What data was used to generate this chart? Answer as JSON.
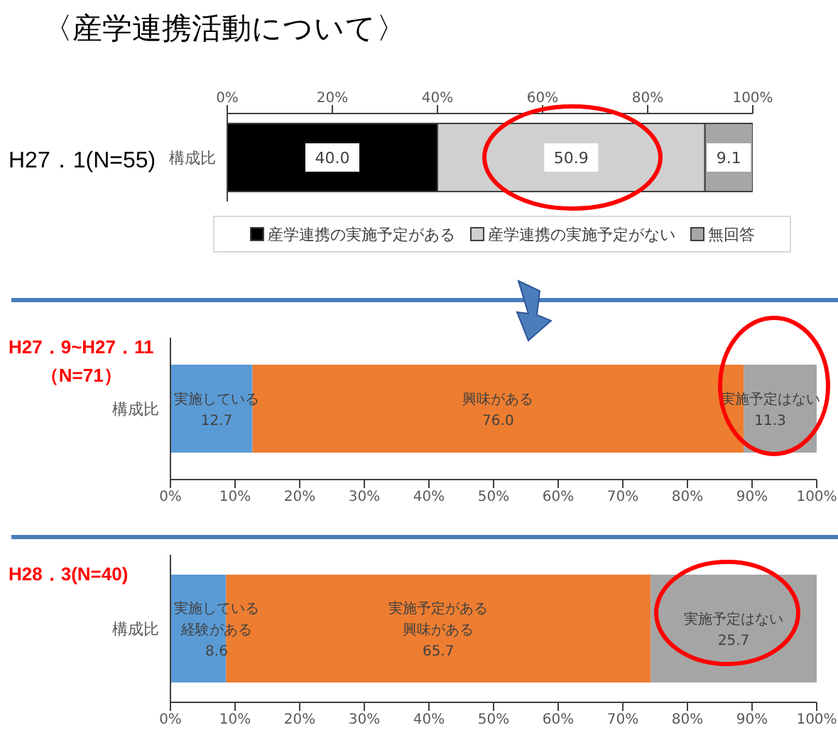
{
  "chart_data": [
    {
      "type": "bar",
      "orientation": "horizontal",
      "stacked": true,
      "title": "〈産学連携活動について〉",
      "ylabel": "H27．1(N=55)",
      "categories": [
        "構成比"
      ],
      "legend": "bottom",
      "x2lim": [
        0,
        100
      ],
      "x2ticks": [
        {
          "value": 0,
          "label": "0%"
        },
        {
          "value": 20,
          "label": "20%"
        },
        {
          "value": 40,
          "label": "40%"
        },
        {
          "value": 60,
          "label": "60%"
        },
        {
          "value": 80,
          "label": "80%"
        },
        {
          "value": 100,
          "label": "100%"
        }
      ],
      "series": [
        {
          "name": "産学連携の実施予定がある",
          "color": "#000000",
          "values": [
            40.0
          ],
          "value_labels": [
            "40.0"
          ]
        },
        {
          "name": "産学連携の実施予定がない",
          "color": "#d0d0d0",
          "values": [
            50.9
          ],
          "value_labels": [
            "50.9"
          ]
        },
        {
          "name": "無回答",
          "color": "#a6a6a6",
          "values": [
            9.1
          ],
          "value_labels": [
            "9.1"
          ]
        }
      ]
    },
    {
      "type": "bar",
      "orientation": "horizontal",
      "stacked": true,
      "ylabel": "H27．9~H27．11（N=71）",
      "categories": [
        "構成比"
      ],
      "xlim": [
        0,
        100
      ],
      "xticks": [
        {
          "value": 0,
          "label": "0%"
        },
        {
          "value": 10,
          "label": "10%"
        },
        {
          "value": 20,
          "label": "20%"
        },
        {
          "value": 30,
          "label": "30%"
        },
        {
          "value": 40,
          "label": "40%"
        },
        {
          "value": 50,
          "label": "50%"
        },
        {
          "value": 60,
          "label": "60%"
        },
        {
          "value": 70,
          "label": "70%"
        },
        {
          "value": 80,
          "label": "80%"
        },
        {
          "value": 90,
          "label": "90%"
        },
        {
          "value": 100,
          "label": "100%"
        }
      ],
      "series": [
        {
          "name": "実施している",
          "color": "#5b9bd5",
          "values": [
            12.7
          ],
          "value_labels": [
            "12.7"
          ]
        },
        {
          "name": "興味がある",
          "color": "#ed7d31",
          "values": [
            76.0
          ],
          "value_labels": [
            "76.0"
          ]
        },
        {
          "name": "実施予定はない",
          "color": "#a5a5a5",
          "values": [
            11.3
          ],
          "value_labels": [
            "11.3"
          ]
        }
      ]
    },
    {
      "type": "bar",
      "orientation": "horizontal",
      "stacked": true,
      "ylabel": "H28．3(N=40)",
      "categories": [
        "構成比"
      ],
      "xlim": [
        0,
        100
      ],
      "xticks": [
        {
          "value": 0,
          "label": "0%"
        },
        {
          "value": 10,
          "label": "10%"
        },
        {
          "value": 20,
          "label": "20%"
        },
        {
          "value": 30,
          "label": "30%"
        },
        {
          "value": 40,
          "label": "40%"
        },
        {
          "value": 50,
          "label": "50%"
        },
        {
          "value": 60,
          "label": "60%"
        },
        {
          "value": 70,
          "label": "70%"
        },
        {
          "value": 80,
          "label": "80%"
        },
        {
          "value": 90,
          "label": "90%"
        },
        {
          "value": 100,
          "label": "100%"
        }
      ],
      "series": [
        {
          "name": "実施している経験がある",
          "color": "#5b9bd5",
          "values": [
            8.6
          ],
          "value_labels": [
            "8.6"
          ]
        },
        {
          "name": "実施予定がある興味がある",
          "color": "#ed7d31",
          "values": [
            65.7
          ],
          "value_labels": [
            "65.7"
          ]
        },
        {
          "name": "実施予定はない",
          "color": "#a5a5a5",
          "values": [
            25.7
          ],
          "value_labels": [
            "25.7"
          ]
        }
      ]
    }
  ]
}
